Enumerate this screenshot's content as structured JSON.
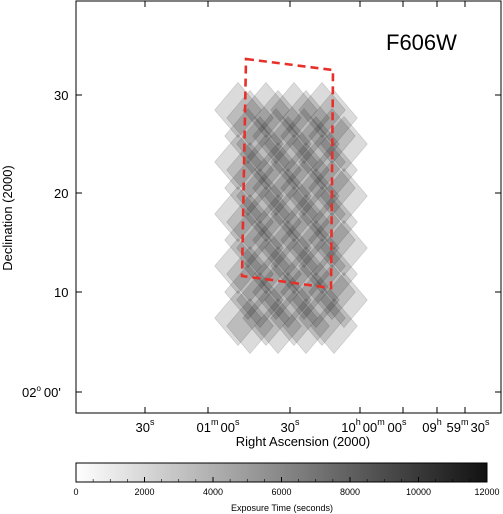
{
  "chart_data": {
    "type": "heatmap",
    "panel_label": "F606W",
    "xlabel": "Right Ascension (2000)",
    "ylabel": "Declination (2000)",
    "x_ticks": [
      {
        "label": "30",
        "sup": "s"
      },
      {
        "label": "01",
        "sup": "m",
        "label2": "00",
        "sup2": "s"
      },
      {
        "label": "30",
        "sup": "s"
      },
      {
        "label": "10",
        "sup": "h",
        "label2": "00",
        "sup2": "m"
      },
      {
        "label": "00",
        "sup": "s"
      },
      {
        "label": "09",
        "sup": "h"
      },
      {
        "label": "59",
        "sup": "m",
        "label2": "30",
        "sup2": "s"
      }
    ],
    "y_ticks": [
      {
        "label": "02",
        "sup": "o",
        "label2": "00'"
      },
      {
        "label": "10"
      },
      {
        "label": "20"
      },
      {
        "label": "30"
      }
    ],
    "y_tick_values_arcmin": [
      0,
      10,
      20,
      30
    ],
    "ylim_arcmin": [
      -2,
      40
    ],
    "outline_color": "#e8302a",
    "mosaic_color": "#000000",
    "colorbar": {
      "label": "Exposure Time (seconds)",
      "min": 0,
      "max": 12000,
      "ticks": [
        "0",
        "2000",
        "4000",
        "6000",
        "8000",
        "10000",
        "12000"
      ],
      "colormap": [
        "#ffffff",
        "#111111"
      ]
    },
    "mosaic": {
      "tile_count_cols": 4,
      "tile_count_rows": 9
    }
  }
}
